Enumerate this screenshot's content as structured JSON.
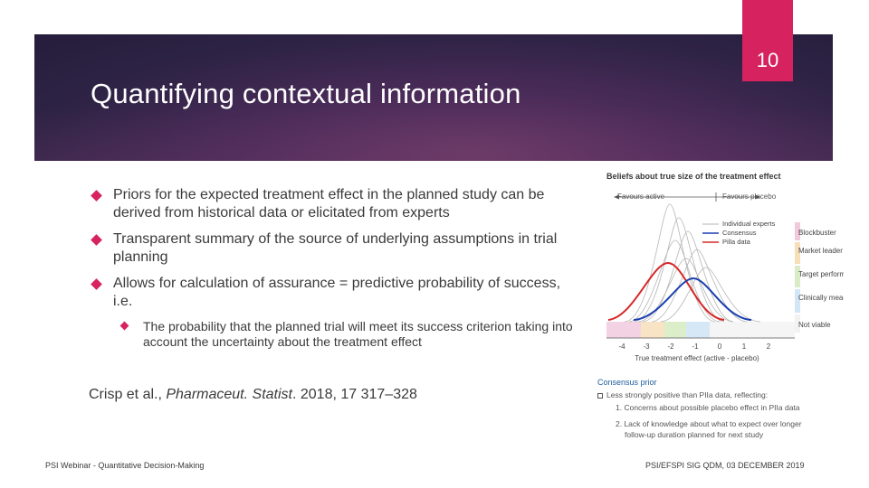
{
  "slide": {
    "title": "Quantifying contextual information",
    "page_number": "10"
  },
  "bullets": [
    {
      "text": "Priors for the expected treatment effect in the planned study can be derived from historical data or elicitated from experts"
    },
    {
      "text": "Transparent summary of the source of underlying assumptions in trial planning"
    },
    {
      "text": "Allows for calculation of assurance = predictive probability of success, i.e."
    }
  ],
  "sub_bullet": {
    "text": "The probability that the planned trial will meet its success criterion taking into account the uncertainty about the treatment effect"
  },
  "citation": {
    "authors": "Crisp et al., ",
    "journal": "Pharmaceut. Statist",
    "rest": ". 2018, 17 317–328"
  },
  "footer": {
    "left": "PSI Webinar - Quantitative Decision-Making",
    "right": "PSI/EFSPI SIG QDM, 03 DECEMBER 2019"
  },
  "figure": {
    "title": "Beliefs about true size of the treatment effect",
    "favours_active": "Favours active",
    "favours_placebo": "Favours placebo",
    "legend": [
      "Individual experts",
      "Consensus",
      "Pilla data"
    ],
    "categories": [
      "Blockbuster",
      "Market leader",
      "Target performance",
      "Clinically meaningful",
      "Not viable"
    ],
    "x_ticks": [
      "-4",
      "-3",
      "-2",
      "-1",
      "0",
      "1",
      "2"
    ],
    "x_label": "True treatment effect (active - placebo)",
    "caption_title": "Consensus prior",
    "caption_lines": [
      "Less strongly positive than PIIa data, reflecting:",
      "1.  Concerns about possible placebo effect in PIIa data",
      "2.  Lack of knowledge about what to expect over longer",
      "follow-up duration planned for next study"
    ],
    "colors": {
      "consensus": "#1a3fb0",
      "pilla": "#d62828",
      "experts": "#b5b5b5"
    }
  },
  "theme": {
    "accent": "#d6235f",
    "band": "#3b2550"
  }
}
